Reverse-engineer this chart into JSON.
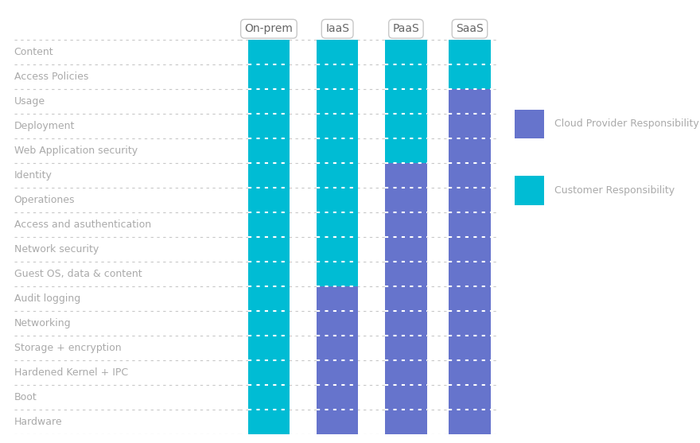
{
  "rows": [
    "Content",
    "Access Policies",
    "Usage",
    "Deployment",
    "Web Application security",
    "Identity",
    "Operationes",
    "Access and asuthentication",
    "Network security",
    "Guest OS, data & content",
    "Audit logging",
    "Networking",
    "Storage + encryption",
    "Hardened Kernel + IPC",
    "Boot",
    "Hardware"
  ],
  "columns": [
    "On-prem",
    "IaaS",
    "PaaS",
    "SaaS"
  ],
  "teal_color": "#00BCD4",
  "blue_color": "#6674CC",
  "bg_color": "#FFFFFF",
  "grid_color": "#C8C8C8",
  "text_color": "#AAAAAA",
  "col_header_color": "#666666",
  "legend_text_color": "#AAAAAA",
  "responsibility": {
    "On-prem": [
      1,
      1,
      1,
      1,
      1,
      1,
      1,
      1,
      1,
      1,
      1,
      1,
      1,
      1,
      1,
      1
    ],
    "IaaS": [
      1,
      1,
      1,
      1,
      1,
      1,
      1,
      1,
      1,
      1,
      0,
      0,
      0,
      0,
      0,
      0
    ],
    "PaaS": [
      1,
      1,
      1,
      1,
      1,
      0,
      0,
      0,
      0,
      0,
      0,
      0,
      0,
      0,
      0,
      0
    ],
    "SaaS": [
      1,
      1,
      0,
      0,
      0,
      0,
      0,
      0,
      0,
      0,
      0,
      0,
      0,
      0,
      0,
      0
    ]
  },
  "label_fontsize": 9,
  "col_header_fontsize": 10
}
